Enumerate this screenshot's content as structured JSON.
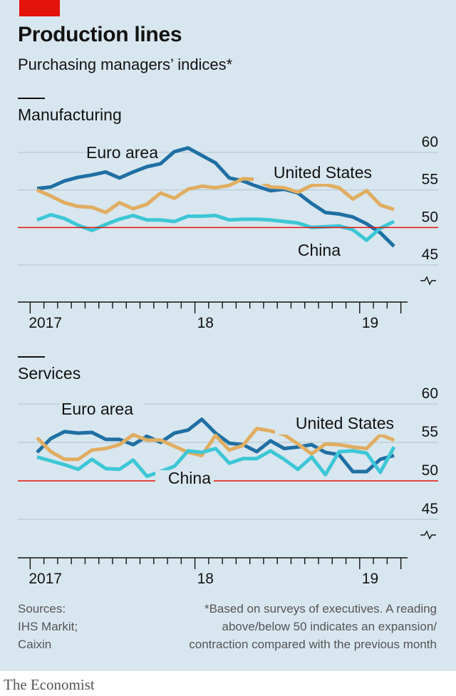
{
  "header": {
    "title": "Production lines",
    "subtitle": "Purchasing managers’ indices*"
  },
  "footer": {
    "sources": [
      "Sources:",
      "IHS Markit;",
      "Caixin"
    ],
    "note": [
      "*Based on surveys of executives. A reading",
      "above/below 50 indicates an expansion/",
      "contraction compared with the previous month"
    ],
    "brand": "The Economist"
  },
  "colors": {
    "panel": "#d8e6ef",
    "euro_area": "#1f6fa3",
    "united_states": "#e0ad61",
    "china": "#3dc7d6",
    "reference_line": "#e3120b"
  },
  "chart_data": [
    {
      "type": "line",
      "title": "Manufacturing",
      "x_ticks": [
        "2017",
        "18",
        "19"
      ],
      "ylim": [
        45,
        60
      ],
      "y_ticks": [
        45,
        50,
        55,
        60
      ],
      "axis_break": true,
      "reference_line": 50,
      "grid": true,
      "x": [
        "2017-01",
        "2017-02",
        "2017-03",
        "2017-04",
        "2017-05",
        "2017-06",
        "2017-07",
        "2017-08",
        "2017-09",
        "2017-10",
        "2017-11",
        "2017-12",
        "2018-01",
        "2018-02",
        "2018-03",
        "2018-04",
        "2018-05",
        "2018-06",
        "2018-07",
        "2018-08",
        "2018-09",
        "2018-10",
        "2018-11",
        "2018-12",
        "2019-01",
        "2019-02",
        "2019-03"
      ],
      "series": [
        {
          "name": "Euro area",
          "color_key": "euro_area",
          "values": [
            55.2,
            55.4,
            56.2,
            56.7,
            57.0,
            57.4,
            56.6,
            57.4,
            58.1,
            58.5,
            60.1,
            60.6,
            59.6,
            58.6,
            56.6,
            56.2,
            55.5,
            54.9,
            55.1,
            54.6,
            53.2,
            52.0,
            51.8,
            51.4,
            50.5,
            49.3,
            47.5
          ]
        },
        {
          "name": "United States",
          "color_key": "united_states",
          "values": [
            55.0,
            54.2,
            53.3,
            52.8,
            52.7,
            52.0,
            53.3,
            52.5,
            53.1,
            54.6,
            53.9,
            55.1,
            55.5,
            55.3,
            55.6,
            56.5,
            56.4,
            55.4,
            55.3,
            54.7,
            55.6,
            55.7,
            55.3,
            53.8,
            54.9,
            53.0,
            52.4
          ]
        },
        {
          "name": "China",
          "color_key": "china",
          "values": [
            51.0,
            51.7,
            51.2,
            50.3,
            49.6,
            50.4,
            51.1,
            51.6,
            51.0,
            51.0,
            50.8,
            51.5,
            51.5,
            51.6,
            51.0,
            51.1,
            51.1,
            51.0,
            50.8,
            50.6,
            50.0,
            50.1,
            50.2,
            49.7,
            48.3,
            49.9,
            50.8
          ]
        }
      ]
    },
    {
      "type": "line",
      "title": "Services",
      "x_ticks": [
        "2017",
        "18",
        "19"
      ],
      "ylim": [
        45,
        60
      ],
      "y_ticks": [
        45,
        50,
        55,
        60
      ],
      "axis_break": true,
      "reference_line": 50,
      "grid": true,
      "x": [
        "2017-01",
        "2017-02",
        "2017-03",
        "2017-04",
        "2017-05",
        "2017-06",
        "2017-07",
        "2017-08",
        "2017-09",
        "2017-10",
        "2017-11",
        "2017-12",
        "2018-01",
        "2018-02",
        "2018-03",
        "2018-04",
        "2018-05",
        "2018-06",
        "2018-07",
        "2018-08",
        "2018-09",
        "2018-10",
        "2018-11",
        "2018-12",
        "2019-01",
        "2019-02",
        "2019-03"
      ],
      "series": [
        {
          "name": "Euro area",
          "color_key": "euro_area",
          "values": [
            53.7,
            55.5,
            56.4,
            56.2,
            56.3,
            55.4,
            55.4,
            54.7,
            55.8,
            55.0,
            56.2,
            56.6,
            58.0,
            56.2,
            54.9,
            54.7,
            53.8,
            55.2,
            54.2,
            54.4,
            54.7,
            53.7,
            53.4,
            51.2,
            51.2,
            52.8,
            53.3
          ]
        },
        {
          "name": "United States",
          "color_key": "united_states",
          "values": [
            55.6,
            53.8,
            52.8,
            52.8,
            54.0,
            54.2,
            54.7,
            56.0,
            55.3,
            55.3,
            54.5,
            53.7,
            53.3,
            55.9,
            54.0,
            54.6,
            56.8,
            56.5,
            56.0,
            54.8,
            53.5,
            54.8,
            54.7,
            54.4,
            54.2,
            56.0,
            55.3
          ]
        },
        {
          "name": "China",
          "color_key": "china",
          "values": [
            53.1,
            52.6,
            52.1,
            51.5,
            52.8,
            51.6,
            51.5,
            52.7,
            50.6,
            51.2,
            51.9,
            53.9,
            53.7,
            54.2,
            52.3,
            52.9,
            52.9,
            53.9,
            52.8,
            51.5,
            53.1,
            50.8,
            53.8,
            53.9,
            53.6,
            51.1,
            54.4
          ]
        }
      ]
    }
  ]
}
